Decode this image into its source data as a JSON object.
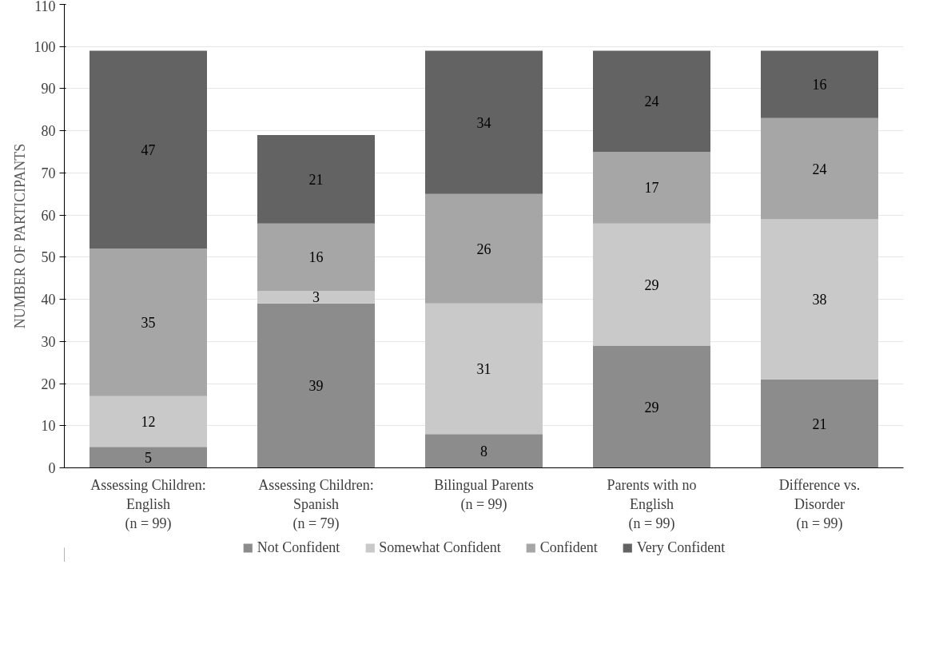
{
  "chart_data": {
    "type": "bar",
    "stacked": true,
    "ylabel": "NUMBER OF PARTICIPANTS",
    "categories": [
      "Assessing Children:\nEnglish\n(n = 99)",
      "Assessing Children:\nSpanish\n(n = 79)",
      "Bilingual Parents\n(n = 99)",
      "Parents with no\nEnglish\n(n = 99)",
      "Difference vs.\nDisorder\n(n = 99)"
    ],
    "series": [
      {
        "name": "Not Confident",
        "color": "#8c8c8c",
        "values": [
          5,
          39,
          8,
          29,
          21
        ]
      },
      {
        "name": "Somewhat Confident",
        "color": "#c9c9c9",
        "values": [
          12,
          3,
          31,
          29,
          38
        ]
      },
      {
        "name": "Confident",
        "color": "#a6a6a6",
        "values": [
          35,
          16,
          26,
          17,
          24
        ]
      },
      {
        "name": "Very Confident",
        "color": "#636363",
        "values": [
          47,
          21,
          34,
          24,
          16
        ]
      }
    ],
    "ylim": [
      0,
      110
    ],
    "yticks": [
      0,
      10,
      20,
      30,
      40,
      50,
      60,
      70,
      80,
      90,
      100,
      110
    ],
    "grid": "y",
    "legend": "bottom",
    "data_labels": true
  }
}
